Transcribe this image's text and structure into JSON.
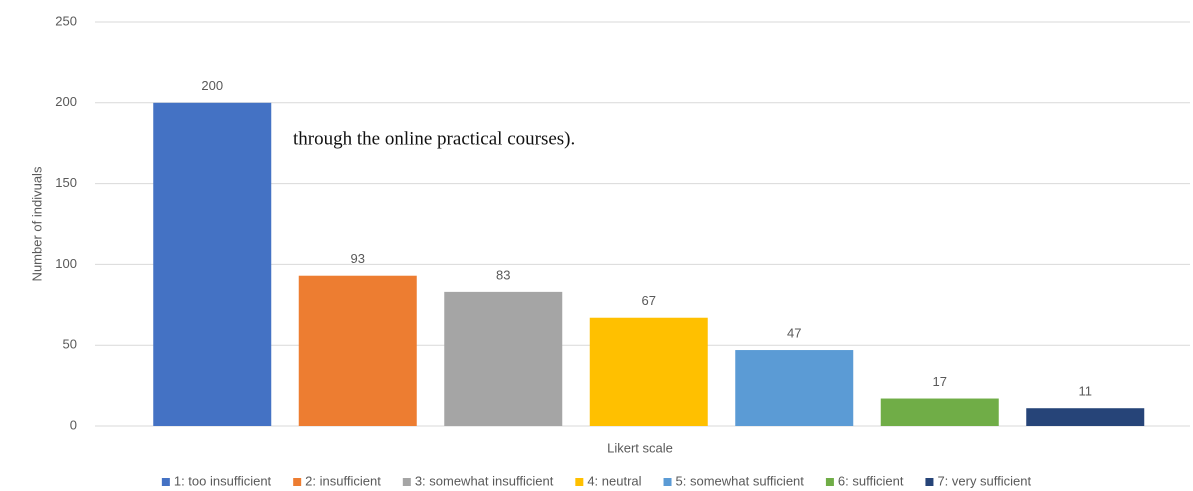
{
  "chart_data": {
    "type": "bar",
    "categories": [
      "1: too insufficient",
      "2: insufficient",
      "3: somewhat insufficient",
      "4: neutral",
      "5: somewhat sufficient",
      "6: sufficient",
      "7: very sufficient"
    ],
    "values": [
      200,
      93,
      83,
      67,
      47,
      17,
      11
    ],
    "colors": [
      "#4472c4",
      "#ed7d31",
      "#a5a5a5",
      "#ffc000",
      "#5b9bd5",
      "#70ad47",
      "#264478"
    ],
    "ylim": [
      0,
      250
    ],
    "yticks": [
      0,
      50,
      100,
      150,
      200,
      250
    ],
    "grid": true,
    "xlabel": "Likert scale",
    "ylabel": "Number of indivuals",
    "annotation": "through the online practical courses).",
    "legend": "bottom"
  }
}
